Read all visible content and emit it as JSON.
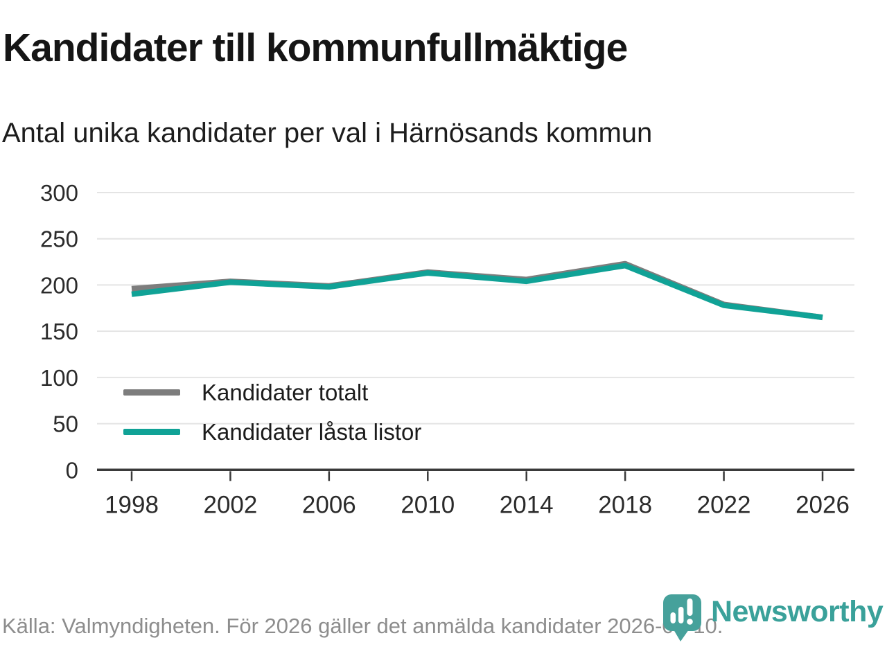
{
  "chart_data": {
    "type": "line",
    "title": "Kandidater till kommunfullmäktige",
    "subtitle": "Antal unika kandidater per val i Härnösands kommun",
    "x": [
      1998,
      2002,
      2006,
      2010,
      2014,
      2018,
      2022,
      2026
    ],
    "series": [
      {
        "name": "Kandidater totalt",
        "color": "#7d7d7d",
        "values": [
          196,
          204,
          199,
          214,
          206,
          223,
          179,
          165
        ]
      },
      {
        "name": "Kandidater låsta listor",
        "color": "#10a296",
        "values": [
          190,
          203,
          198,
          213,
          204,
          221,
          178,
          165
        ]
      }
    ],
    "ylim": [
      0,
      300
    ],
    "yticks": [
      0,
      50,
      100,
      150,
      200,
      250,
      300
    ],
    "grid": "horizontal",
    "gridline_color": "#e4e4e4",
    "axis_color": "#3a3a3a",
    "legend_position": "inside-bottom-left"
  },
  "footer": {
    "source": "Källa: Valmyndigheten. För 2026 gäller det anmälda kandidater 2026-04-10."
  },
  "branding": {
    "logo_text": "Newsworthy",
    "logo_color": "#3aa19a",
    "logo_icon_color": "#46a19b"
  }
}
